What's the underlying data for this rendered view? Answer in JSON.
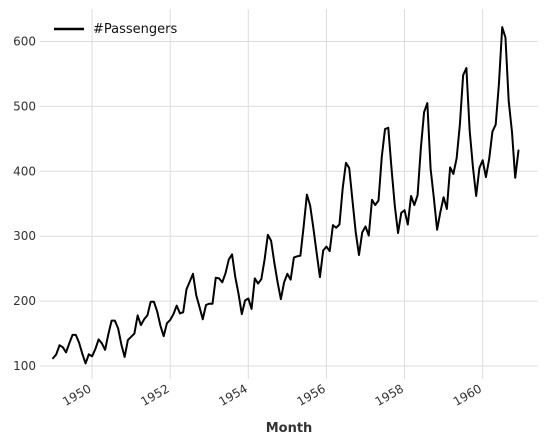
{
  "chart_data": {
    "type": "line",
    "title": "",
    "xlabel": "Month",
    "ylabel": "",
    "x_start": "1949-01",
    "x_end": "1960-12",
    "x_frequency": "monthly",
    "xlim": [
      "1948-09",
      "1961-06"
    ],
    "ylim": [
      80,
      650
    ],
    "grid": true,
    "legend_placement": "top-left",
    "x_ticks": [
      {
        "label": "1950",
        "year": 1950
      },
      {
        "label": "1952",
        "year": 1952
      },
      {
        "label": "1954",
        "year": 1954
      },
      {
        "label": "1956",
        "year": 1956
      },
      {
        "label": "1958",
        "year": 1958
      },
      {
        "label": "1960",
        "year": 1960
      }
    ],
    "y_ticks": [
      100,
      200,
      300,
      400,
      500,
      600
    ],
    "series": [
      {
        "name": "#Passengers",
        "color": "#000000",
        "values": [
          112,
          118,
          132,
          129,
          121,
          135,
          148,
          148,
          136,
          119,
          104,
          118,
          115,
          126,
          141,
          135,
          125,
          149,
          170,
          170,
          158,
          133,
          114,
          140,
          145,
          150,
          178,
          163,
          172,
          178,
          199,
          199,
          184,
          162,
          146,
          166,
          171,
          180,
          193,
          181,
          183,
          218,
          230,
          242,
          209,
          191,
          172,
          194,
          196,
          196,
          236,
          235,
          229,
          243,
          264,
          272,
          237,
          211,
          180,
          201,
          204,
          188,
          235,
          227,
          234,
          264,
          302,
          293,
          259,
          229,
          203,
          229,
          242,
          233,
          267,
          269,
          270,
          315,
          364,
          347,
          312,
          274,
          237,
          278,
          284,
          277,
          317,
          313,
          318,
          374,
          413,
          405,
          355,
          306,
          271,
          306,
          315,
          301,
          356,
          348,
          355,
          422,
          465,
          467,
          404,
          347,
          305,
          336,
          340,
          318,
          362,
          348,
          363,
          435,
          491,
          505,
          404,
          359,
          310,
          337,
          360,
          342,
          406,
          396,
          420,
          472,
          548,
          559,
          463,
          407,
          362,
          405,
          417,
          391,
          419,
          461,
          472,
          535,
          622,
          606,
          508,
          461,
          390,
          432
        ]
      }
    ]
  }
}
